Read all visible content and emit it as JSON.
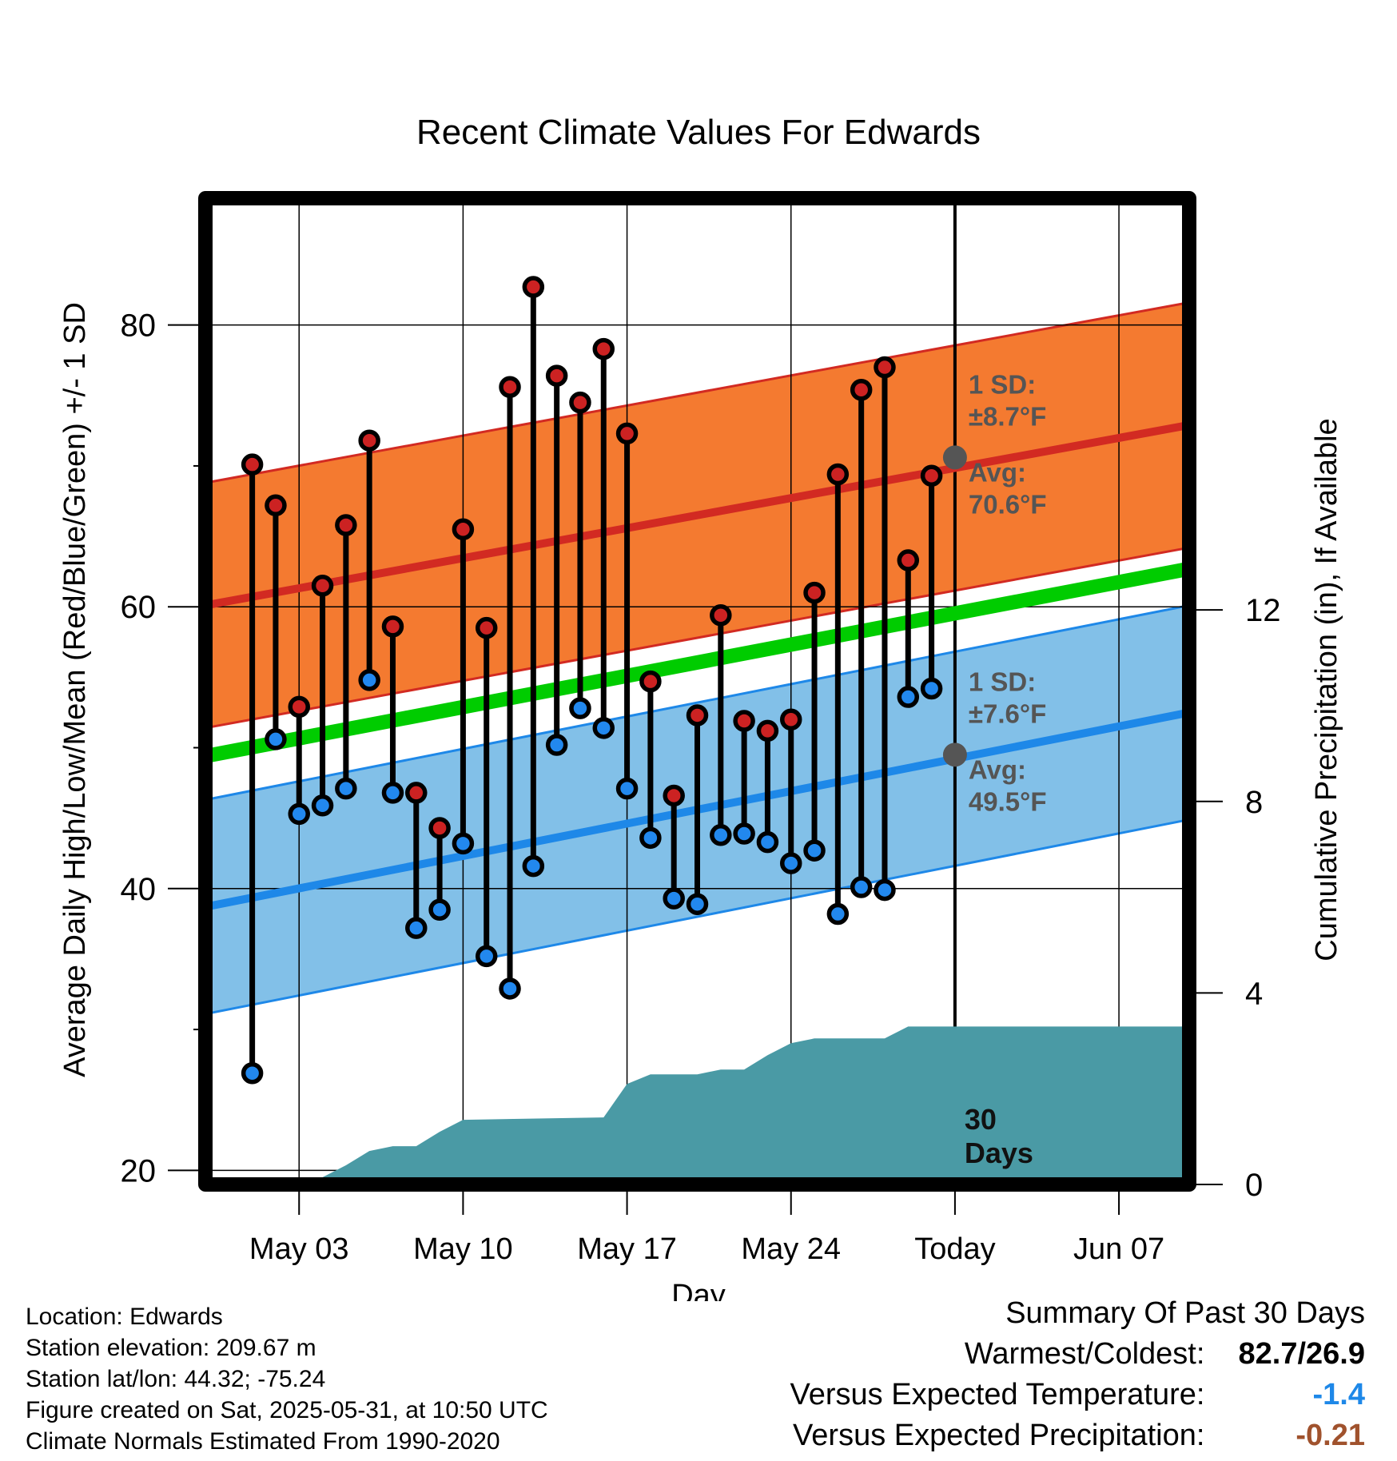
{
  "chart_data": {
    "type": "line",
    "title": "Recent Climate Values For Edwards",
    "xlabel": "Day",
    "ylabel": "Average Daily High/Low/Mean (Red/Blue/Green) +/- 1 SD",
    "ylabel2": "Cumulative Precipitation (in), If Available",
    "ylim": [
      19,
      89
    ],
    "y2lim": [
      0,
      20.6
    ],
    "y_ticks": [
      20,
      40,
      60,
      80
    ],
    "y2_ticks": [
      0,
      4,
      8,
      12
    ],
    "x_range": [
      "2025-04-29",
      "2025-06-10"
    ],
    "x_ticks": [
      {
        "date": "2025-05-03",
        "label": "May 03"
      },
      {
        "date": "2025-05-10",
        "label": "May 10"
      },
      {
        "date": "2025-05-17",
        "label": "May 17"
      },
      {
        "date": "2025-05-24",
        "label": "May 24"
      },
      {
        "date": "2025-05-31",
        "label": "Today"
      },
      {
        "date": "2025-06-07",
        "label": "Jun 07"
      }
    ],
    "today": "2025-05-31",
    "today_label": "30\nDays",
    "grid": true,
    "daily": [
      {
        "date": "2025-05-01",
        "high": 70.1,
        "low": 26.9
      },
      {
        "date": "2025-05-02",
        "high": 67.2,
        "low": 50.6
      },
      {
        "date": "2025-05-03",
        "high": 52.9,
        "low": 45.3
      },
      {
        "date": "2025-05-04",
        "high": 61.5,
        "low": 45.9
      },
      {
        "date": "2025-05-05",
        "high": 65.8,
        "low": 47.1
      },
      {
        "date": "2025-05-06",
        "high": 71.8,
        "low": 54.8
      },
      {
        "date": "2025-05-07",
        "high": 58.6,
        "low": 46.8
      },
      {
        "date": "2025-05-08",
        "high": 46.8,
        "low": 37.2
      },
      {
        "date": "2025-05-09",
        "high": 44.3,
        "low": 38.5
      },
      {
        "date": "2025-05-10",
        "high": 65.5,
        "low": 43.2
      },
      {
        "date": "2025-05-11",
        "high": 58.5,
        "low": 35.2
      },
      {
        "date": "2025-05-12",
        "high": 75.6,
        "low": 32.9
      },
      {
        "date": "2025-05-13",
        "high": 82.7,
        "low": 41.6
      },
      {
        "date": "2025-05-14",
        "high": 76.4,
        "low": 50.2
      },
      {
        "date": "2025-05-15",
        "high": 74.5,
        "low": 52.8
      },
      {
        "date": "2025-05-16",
        "high": 78.3,
        "low": 51.4
      },
      {
        "date": "2025-05-17",
        "high": 72.3,
        "low": 47.1
      },
      {
        "date": "2025-05-18",
        "high": 54.7,
        "low": 43.6
      },
      {
        "date": "2025-05-19",
        "high": 46.6,
        "low": 39.3
      },
      {
        "date": "2025-05-20",
        "high": 52.3,
        "low": 38.9
      },
      {
        "date": "2025-05-21",
        "high": 59.4,
        "low": 43.8
      },
      {
        "date": "2025-05-22",
        "high": 51.9,
        "low": 43.9
      },
      {
        "date": "2025-05-23",
        "high": 51.2,
        "low": 43.3
      },
      {
        "date": "2025-05-24",
        "high": 52.0,
        "low": 41.8
      },
      {
        "date": "2025-05-25",
        "high": 61.0,
        "low": 42.7
      },
      {
        "date": "2025-05-26",
        "high": 69.4,
        "low": 38.2
      },
      {
        "date": "2025-05-27",
        "high": 75.4,
        "low": 40.1
      },
      {
        "date": "2025-05-28",
        "high": 77.0,
        "low": 39.9
      },
      {
        "date": "2025-05-29",
        "high": 63.3,
        "low": 53.6
      },
      {
        "date": "2025-05-30",
        "high": 69.3,
        "low": 54.2
      }
    ],
    "normals": {
      "dates": [
        "2025-04-29",
        "2025-06-10"
      ],
      "high_mean": [
        60.1,
        72.9
      ],
      "low_mean": [
        38.7,
        52.5
      ],
      "mean": [
        49.4,
        62.7
      ],
      "high_sd": 8.7,
      "low_sd": 7.6
    },
    "precip": {
      "dates": [
        "2025-04-29",
        "2025-05-02",
        "2025-05-03",
        "2025-05-04",
        "2025-05-05",
        "2025-05-06",
        "2025-05-07",
        "2025-05-08",
        "2025-05-09",
        "2025-05-10",
        "2025-05-16",
        "2025-05-17",
        "2025-05-18",
        "2025-05-20",
        "2025-05-21",
        "2025-05-22",
        "2025-05-23",
        "2025-05-24",
        "2025-05-25",
        "2025-05-28",
        "2025-05-29",
        "2025-06-10"
      ],
      "values": [
        0,
        0,
        0.15,
        0.15,
        0.4,
        0.7,
        0.8,
        0.8,
        1.1,
        1.35,
        1.4,
        2.1,
        2.3,
        2.3,
        2.4,
        2.4,
        2.7,
        2.95,
        3.05,
        3.05,
        3.3,
        3.3
      ]
    },
    "high_annotation": [
      "1 SD:",
      "±8.7°F",
      "Avg:",
      "70.6°F"
    ],
    "low_annotation": [
      "1 SD:",
      "±7.6°F",
      "Avg:",
      "49.5°F"
    ],
    "today_high_avg": 70.6,
    "today_low_avg": 49.5,
    "colors": {
      "high_band": "#f47a30",
      "high_line": "#d22a22",
      "low_band": "#82c0e8",
      "low_line": "#1e88e8",
      "mean_line": "#00cc00",
      "precip": "#4a9aa5",
      "high_marker": "#cc2222",
      "low_marker": "#2288ee",
      "annotation": "#555555"
    }
  },
  "footer": {
    "location": "Location: Edwards",
    "elevation": "Station elevation: 209.67 m",
    "latlon": "Station lat/lon: 44.32; -75.24",
    "created": "Figure created on Sat, 2025-05-31, at 10:50 UTC",
    "normals": "Climate Normals Estimated From 1990-2020"
  },
  "summary": {
    "title": "Summary Of Past 30 Days",
    "warm_cold_label": "Warmest/Coldest:",
    "warm_cold_value": "82.7/26.9",
    "temp_label": "Versus Expected Temperature:",
    "temp_value": "-1.4",
    "temp_color": "#1e88e8",
    "precip_label": "Versus Expected Precipitation:",
    "precip_value": "-0.21",
    "precip_color": "#a0522d"
  }
}
